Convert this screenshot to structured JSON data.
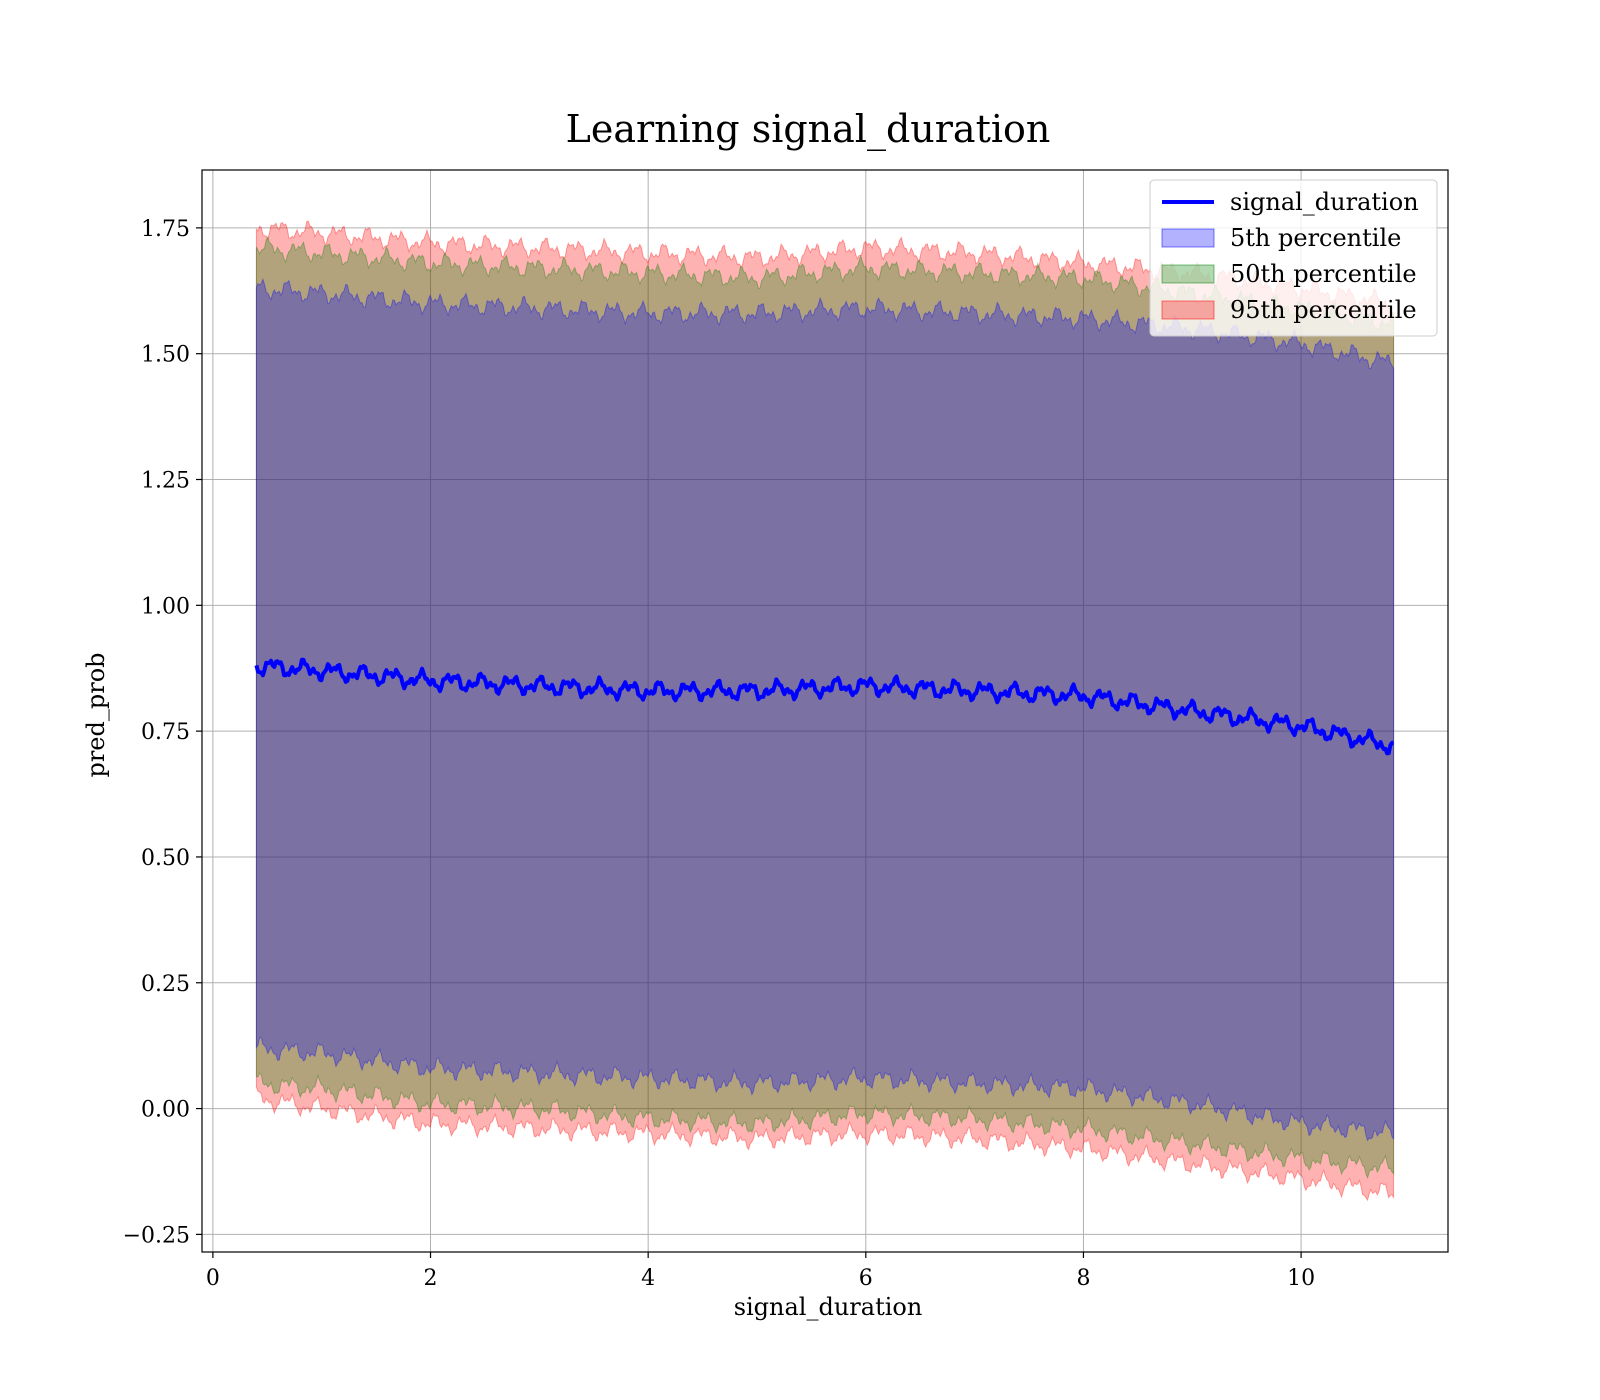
{
  "chart_data": {
    "type": "area",
    "title": "Learning signal_duration",
    "xlabel": "signal_duration",
    "ylabel": "pred_prob",
    "xlim": [
      -0.1,
      11.35
    ],
    "ylim": [
      -0.285,
      1.865
    ],
    "x_ticks": [
      0,
      2,
      4,
      6,
      8,
      10
    ],
    "x_tick_labels": [
      "0",
      "2",
      "4",
      "6",
      "8",
      "10"
    ],
    "y_ticks": [
      -0.25,
      0.0,
      0.25,
      0.5,
      0.75,
      1.0,
      1.25,
      1.5,
      1.75
    ],
    "y_tick_labels": [
      "−0.25",
      "0.00",
      "0.25",
      "0.50",
      "0.75",
      "1.00",
      "1.25",
      "1.50",
      "1.75"
    ],
    "grid": true,
    "legend_position": "top-right",
    "x": [
      0.4,
      1.0,
      2.0,
      3.0,
      4.0,
      5.0,
      6.0,
      7.0,
      8.0,
      9.0,
      10.0,
      10.85
    ],
    "series": [
      {
        "name": "signal_duration",
        "kind": "line",
        "color": "#0000ff",
        "values": [
          0.88,
          0.87,
          0.85,
          0.84,
          0.83,
          0.83,
          0.84,
          0.83,
          0.82,
          0.79,
          0.76,
          0.72
        ]
      },
      {
        "name": "5th percentile",
        "kind": "band",
        "color": "#0000ff",
        "opacity": 0.3,
        "lower": [
          0.12,
          0.11,
          0.08,
          0.07,
          0.06,
          0.05,
          0.06,
          0.05,
          0.04,
          0.01,
          -0.03,
          -0.05
        ],
        "upper": [
          1.63,
          1.62,
          1.6,
          1.59,
          1.58,
          1.58,
          1.59,
          1.58,
          1.57,
          1.55,
          1.52,
          1.48
        ]
      },
      {
        "name": "50th percentile",
        "kind": "band",
        "color": "#008000",
        "opacity": 0.3,
        "lower": [
          0.05,
          0.04,
          0.01,
          0.0,
          -0.02,
          -0.03,
          -0.01,
          -0.02,
          -0.04,
          -0.07,
          -0.1,
          -0.12
        ],
        "upper": [
          1.71,
          1.7,
          1.68,
          1.67,
          1.66,
          1.65,
          1.67,
          1.66,
          1.65,
          1.62,
          1.59,
          1.56
        ]
      },
      {
        "name": "95th percentile",
        "kind": "band",
        "color": "#ff0000",
        "opacity": 0.3,
        "lower": [
          0.02,
          0.0,
          -0.03,
          -0.04,
          -0.05,
          -0.06,
          -0.05,
          -0.06,
          -0.08,
          -0.11,
          -0.14,
          -0.17
        ],
        "upper": [
          1.75,
          1.74,
          1.72,
          1.71,
          1.7,
          1.69,
          1.71,
          1.7,
          1.68,
          1.66,
          1.63,
          1.6
        ]
      }
    ]
  }
}
